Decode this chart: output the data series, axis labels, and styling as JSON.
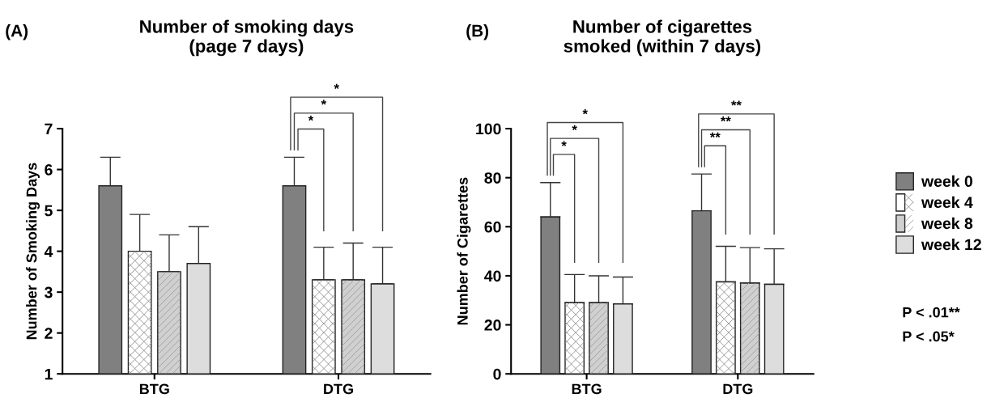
{
  "chart_data": [
    {
      "type": "bar",
      "title": "Number of smoking days\n(page 7 days)",
      "ylabel": "Number of Smoking Days",
      "categories": [
        "BTG",
        "DTG"
      ],
      "ylim": [
        1,
        7
      ],
      "yticks": [
        1,
        2,
        3,
        4,
        5,
        6,
        7
      ],
      "grid": false,
      "legend": false,
      "series": [
        {
          "color": "#808080",
          "values": [
            5.6,
            5.6
          ],
          "errors": [
            [
              5.6,
              6.3
            ],
            [
              5.6,
              6.3
            ]
          ]
        },
        {
          "color": "#ffffff",
          "values": [
            4.0,
            3.3
          ],
          "errors": [
            [
              4.0,
              4.9
            ],
            [
              3.3,
              4.1
            ]
          ]
        },
        {
          "color": "#d0d0d0",
          "values": [
            3.5,
            3.3
          ],
          "errors": [
            [
              3.5,
              4.4
            ],
            [
              3.3,
              4.2
            ]
          ]
        },
        {
          "color": "#dddddd",
          "values": [
            3.7,
            3.2
          ],
          "errors": [
            [
              3.7,
              4.6
            ],
            [
              3.2,
              4.1
            ]
          ]
        }
      ],
      "annotations": [
        "(A)",
        "*",
        "*",
        "*"
      ]
    },
    {
      "type": "bar",
      "title": "Number of cigarettes\nsmoked (within 7 days)",
      "ylabel": "Number of Cigarettes",
      "categories": [
        "BTG",
        "DTG"
      ],
      "ylim": [
        0,
        100
      ],
      "yticks": [
        0,
        20,
        40,
        60,
        80,
        100
      ],
      "grid": false,
      "legend": "right",
      "series": [
        {
          "name": "week 0",
          "color": "#808080",
          "values": [
            64,
            66.5
          ],
          "errors": [
            [
              64,
              78
            ],
            [
              66.5,
              81.5
            ]
          ]
        },
        {
          "name": "week 4",
          "color": "#ffffff",
          "values": [
            29,
            37.5
          ],
          "errors": [
            [
              29,
              40.5
            ],
            [
              37.5,
              52
            ]
          ]
        },
        {
          "name": "week 8",
          "color": "#d0d0d0",
          "values": [
            29,
            37
          ],
          "errors": [
            [
              29,
              40
            ],
            [
              37,
              51.5
            ]
          ]
        },
        {
          "name": "week 12",
          "color": "#dddddd",
          "values": [
            28.5,
            36.5
          ],
          "errors": [
            [
              28.5,
              39.5
            ],
            [
              36.5,
              51
            ]
          ]
        }
      ],
      "annotations": [
        "(B)",
        "P < .01**",
        "P < .05*",
        "*",
        "*",
        "*",
        "**",
        "**",
        "**"
      ]
    }
  ]
}
